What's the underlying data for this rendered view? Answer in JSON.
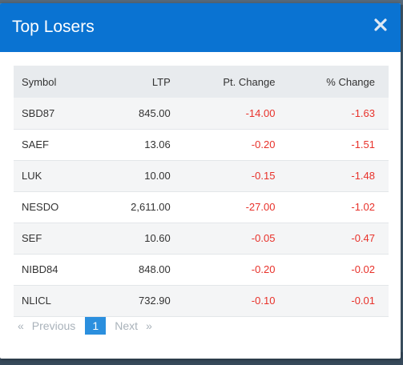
{
  "dialog": {
    "title": "Top Losers",
    "close_label": "×"
  },
  "table": {
    "headers": {
      "symbol": "Symbol",
      "ltp": "LTP",
      "pt_change": "Pt. Change",
      "pct_change": "% Change"
    },
    "rows": [
      {
        "symbol": "SBD87",
        "ltp": "845.00",
        "pt_change": "-14.00",
        "pct_change": "-1.63"
      },
      {
        "symbol": "SAEF",
        "ltp": "13.06",
        "pt_change": "-0.20",
        "pct_change": "-1.51"
      },
      {
        "symbol": "LUK",
        "ltp": "10.00",
        "pt_change": "-0.15",
        "pct_change": "-1.48"
      },
      {
        "symbol": "NESDO",
        "ltp": "2,611.00",
        "pt_change": "-27.00",
        "pct_change": "-1.02"
      },
      {
        "symbol": "SEF",
        "ltp": "10.60",
        "pt_change": "-0.05",
        "pct_change": "-0.47"
      },
      {
        "symbol": "NIBD84",
        "ltp": "848.00",
        "pt_change": "-0.20",
        "pct_change": "-0.02"
      },
      {
        "symbol": "NLICL",
        "ltp": "732.90",
        "pt_change": "-0.10",
        "pct_change": "-0.01"
      }
    ]
  },
  "pagination": {
    "prev_arrow": "«",
    "previous": "Previous",
    "current_page": "1",
    "next": "Next",
    "next_arrow": "»"
  },
  "colors": {
    "header_bg": "#0a73d2",
    "negative": "#e8312a",
    "active_page": "#2b8fde"
  }
}
